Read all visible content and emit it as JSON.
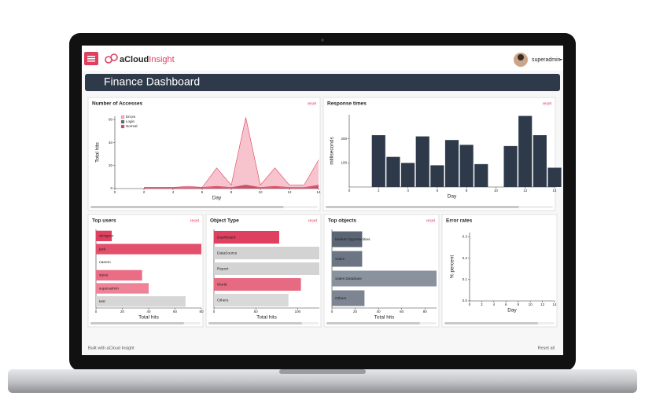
{
  "app": {
    "logo_a": "aCloud",
    "logo_b": "Insight",
    "user": "superadmin",
    "title": "Finance Dashboard",
    "footer": "Built with aCloud Insight",
    "reset_all": "Reset all"
  },
  "chart_data": [
    {
      "type": "area",
      "title": "Number of Accesses",
      "reset": "reset",
      "xlabel": "Day",
      "ylabel": "Total hits",
      "x": [
        2,
        3,
        4,
        5,
        6,
        7,
        8,
        9,
        10,
        11,
        12,
        13,
        14
      ],
      "series": [
        {
          "name": "Errors",
          "color": "#f4a9b8",
          "values": [
            1,
            1,
            1,
            2,
            1,
            18,
            3,
            62,
            3,
            18,
            3,
            3,
            25
          ]
        },
        {
          "name": "Login",
          "color": "#5b6574",
          "values": [
            0,
            0,
            0,
            0,
            0,
            1,
            0,
            3,
            0,
            1,
            0,
            0,
            2
          ]
        },
        {
          "name": "Normal",
          "color": "#e0405f",
          "values": [
            1,
            1,
            1,
            1,
            1,
            2,
            1,
            3,
            1,
            2,
            1,
            1,
            3
          ]
        }
      ],
      "xlim": [
        0,
        14
      ],
      "xticks": [
        0,
        2,
        4,
        6,
        8,
        10,
        12,
        14
      ],
      "ylim": [
        0,
        63
      ],
      "yticks": [
        0,
        20,
        40,
        60
      ],
      "legend": "top-left"
    },
    {
      "type": "bar",
      "title": "Response times",
      "reset": "reset",
      "xlabel": "Day",
      "ylabel": "milliseconds",
      "x": [
        2,
        3,
        4,
        5,
        6,
        7,
        8,
        9,
        10,
        11,
        12,
        13,
        14
      ],
      "values": [
        215,
        125,
        100,
        210,
        90,
        195,
        175,
        95,
        0,
        170,
        295,
        215,
        80
      ],
      "color": "#2e3a4a",
      "xlim": [
        0,
        14
      ],
      "xticks": [
        0,
        2,
        4,
        6,
        8,
        10,
        12,
        14
      ],
      "ylim": [
        0,
        300
      ],
      "yticks": [
        100,
        200
      ]
    },
    {
      "type": "hbar",
      "title": "Top users",
      "reset": "reset",
      "xlabel": "Total hits",
      "categories": [
        "designer",
        "jack",
        "naeem",
        "steve",
        "superadmin",
        "test"
      ],
      "values": [
        12,
        80,
        0,
        35,
        40,
        68
      ],
      "colors": [
        "#e0405f",
        "#e2506c",
        "#ffffff",
        "#ea6d85",
        "#ee8296",
        "#d6d6d6"
      ],
      "xlim": [
        0,
        80
      ],
      "xticks": [
        0,
        20,
        40,
        60,
        80
      ]
    },
    {
      "type": "hbar",
      "title": "Object Type",
      "reset": "reset",
      "xlabel": "Total hits",
      "categories": [
        "Dashboard",
        "DataSource",
        "Report",
        "World",
        "Others"
      ],
      "values": [
        78,
        126,
        126,
        104,
        89
      ],
      "colors": [
        "#e0405f",
        "#d3d3d3",
        "#d3d3d3",
        "#e66b82",
        "#d9d9d9"
      ],
      "xlim": [
        0,
        126
      ],
      "xticks": [
        0,
        50,
        100
      ]
    },
    {
      "type": "hbar",
      "title": "Top objects",
      "reset": "reset",
      "xlabel": "Total hits",
      "categories": [
        "Market Opportunities",
        "Sales",
        "Sales Database",
        "Others"
      ],
      "values": [
        26,
        26,
        90,
        28
      ],
      "colors": [
        "#5b6574",
        "#6c7583",
        "#8a929e",
        "#7d8592"
      ],
      "xlim": [
        0,
        90
      ],
      "xticks": [
        0,
        20,
        40,
        60,
        80
      ]
    },
    {
      "type": "line",
      "title": "Error rates",
      "xlabel": "Day",
      "ylabel": "% percent",
      "xlim": [
        0,
        14
      ],
      "xticks": [
        0,
        2,
        4,
        6,
        8,
        10,
        12,
        14
      ],
      "ylim": [
        0,
        0.32
      ],
      "yticks": [
        {
          "value": 0,
          "label": "0.0"
        },
        0.1,
        0.2,
        0.3
      ]
    }
  ]
}
